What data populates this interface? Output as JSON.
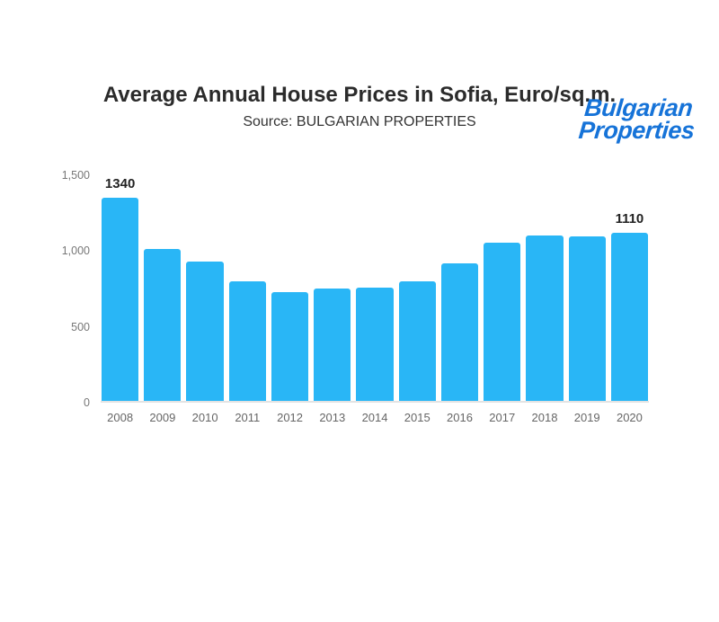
{
  "logo": {
    "line1": "Bulgarian",
    "line2": "Properties",
    "color": "#1673d8"
  },
  "header": {
    "title": "Average Annual House Prices in Sofia, Euro/sq.m.",
    "subtitle": "Source: BULGARIAN PROPERTIES"
  },
  "chart_data": {
    "type": "bar",
    "title": "Average Annual House Prices in Sofia, Euro/sq.m.",
    "subtitle": "Source: BULGARIAN PROPERTIES",
    "categories": [
      "2008",
      "2009",
      "2010",
      "2011",
      "2012",
      "2013",
      "2014",
      "2015",
      "2016",
      "2017",
      "2018",
      "2019",
      "2020"
    ],
    "values": [
      1340,
      1000,
      920,
      790,
      720,
      740,
      745,
      790,
      905,
      1045,
      1090,
      1085,
      1110
    ],
    "data_labels": {
      "0": "1340",
      "12": "1110"
    },
    "xlabel": "",
    "ylabel": "",
    "ylim": [
      0,
      1500
    ],
    "yticks": [
      {
        "value": 1500,
        "label": "1,500"
      },
      {
        "value": 1000,
        "label": "1,000"
      },
      {
        "value": 500,
        "label": "500"
      },
      {
        "value": 0,
        "label": "0"
      }
    ],
    "bar_color": "#29b6f6",
    "grid": false,
    "legend": false
  }
}
